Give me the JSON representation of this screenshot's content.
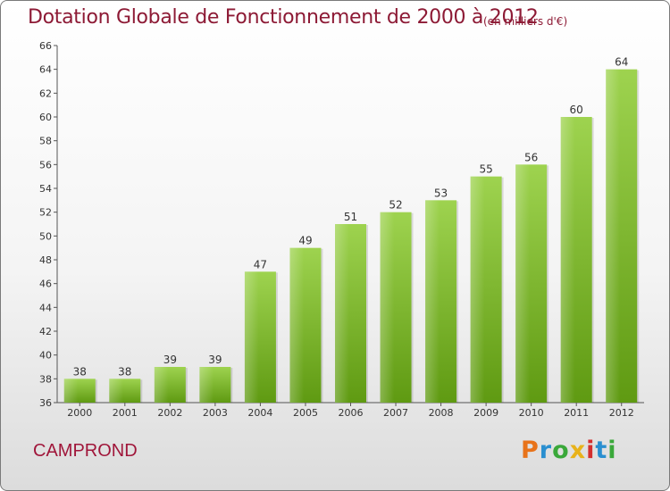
{
  "chart_data": {
    "type": "bar",
    "title": "Dotation Globale de Fonctionnement de 2000 à 2012",
    "subtitle": "(en milliers d'€)",
    "categories": [
      "2000",
      "2001",
      "2002",
      "2003",
      "2004",
      "2005",
      "2006",
      "2007",
      "2008",
      "2009",
      "2010",
      "2011",
      "2012"
    ],
    "values": [
      38,
      38,
      39,
      39,
      47,
      49,
      51,
      52,
      53,
      55,
      56,
      60,
      64
    ],
    "ylim": [
      36,
      66
    ],
    "yticks": [
      36,
      38,
      40,
      42,
      44,
      46,
      48,
      50,
      52,
      54,
      56,
      58,
      60,
      62,
      64,
      66
    ],
    "grid": false,
    "bar_color": "#8cc63f"
  },
  "footer": {
    "commune": "CAMPROND",
    "logo_text": "Proxiti"
  }
}
